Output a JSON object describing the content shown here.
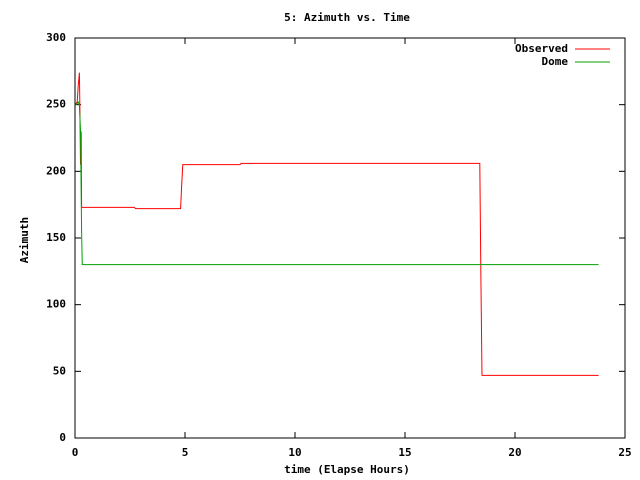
{
  "chart_data": {
    "type": "line",
    "title": "5: Azimuth vs. Time",
    "x_label": "time (Elapse Hours)",
    "y_label": "Azimuth",
    "xlim": [
      0,
      25
    ],
    "xticks": [
      0,
      5,
      10,
      15,
      20,
      25
    ],
    "ylim": [
      0,
      300
    ],
    "yticks": [
      0,
      50,
      100,
      150,
      200,
      250,
      300
    ],
    "grid": false,
    "legend": "top-right",
    "series": [
      {
        "name": "Observed",
        "color": "#ff0000",
        "x": [
          0,
          0.1,
          0.15,
          0.2,
          0.22,
          0.25,
          0.28,
          0.3,
          2.7,
          2.75,
          4.8,
          4.85,
          4.9,
          7.5,
          7.55,
          18.4,
          18.45,
          18.5,
          23.8
        ],
        "values": [
          250,
          252,
          265,
          274,
          250,
          205,
          230,
          173,
          173,
          172,
          172,
          190,
          205,
          205,
          206,
          206,
          120,
          47,
          47
        ]
      },
      {
        "name": "Dome",
        "color": "#00a000",
        "x": [
          0.05,
          0.15,
          0.2,
          0.25,
          0.3,
          0.33,
          23.8
        ],
        "values": [
          250,
          252,
          250,
          230,
          155,
          130,
          130
        ]
      }
    ]
  }
}
